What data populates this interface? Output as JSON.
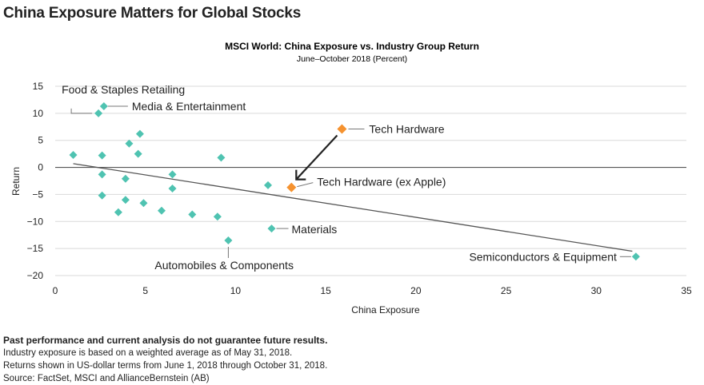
{
  "page": {
    "title": "China Exposure Matters for Global Stocks"
  },
  "footer": {
    "disclaimer": "Past performance and current analysis do not guarantee future results.",
    "line1": "Industry exposure is based on a weighted average as of May 31, 2018.",
    "line2": "Returns shown in US-dollar terms from June 1, 2018 through October 31, 2018.",
    "source": "Source: FactSet, MSCI and AllianceBernstein (AB)"
  },
  "chart_data": {
    "type": "scatter",
    "title": "MSCI World: China Exposure vs. Industry Group Return",
    "subtitle": "June–October 2018 (Percent)",
    "xlabel": "China Exposure",
    "ylabel": "Return",
    "xlim": [
      0,
      35
    ],
    "ylim": [
      -20,
      15
    ],
    "x_ticks": [
      0,
      5,
      10,
      15,
      20,
      25,
      30,
      35
    ],
    "y_ticks": [
      15,
      10,
      5,
      0,
      -5,
      -10,
      -15,
      -20
    ],
    "grid": "horizontal",
    "colors": {
      "default": "#4fc3b1",
      "highlight": "#f5922f",
      "trend": "#555555",
      "grid": "#d9d9d9"
    },
    "points": [
      {
        "x": 2.4,
        "y": 10.0,
        "label": "Food & Staples Retailing"
      },
      {
        "x": 2.7,
        "y": 11.3,
        "label": "Media & Entertainment"
      },
      {
        "x": 1.0,
        "y": 2.3
      },
      {
        "x": 2.6,
        "y": 2.2
      },
      {
        "x": 2.6,
        "y": -1.3
      },
      {
        "x": 2.6,
        "y": -5.2
      },
      {
        "x": 3.5,
        "y": -8.3
      },
      {
        "x": 3.9,
        "y": -6.0
      },
      {
        "x": 3.9,
        "y": -2.1
      },
      {
        "x": 4.1,
        "y": 4.4
      },
      {
        "x": 4.7,
        "y": 6.2
      },
      {
        "x": 4.6,
        "y": 2.5
      },
      {
        "x": 4.9,
        "y": -6.6
      },
      {
        "x": 6.5,
        "y": -1.3
      },
      {
        "x": 6.5,
        "y": -3.9
      },
      {
        "x": 5.9,
        "y": -8.0
      },
      {
        "x": 7.6,
        "y": -8.7
      },
      {
        "x": 9.0,
        "y": -9.1
      },
      {
        "x": 9.2,
        "y": 1.8
      },
      {
        "x": 9.6,
        "y": -13.5,
        "label": "Automobiles & Components"
      },
      {
        "x": 11.8,
        "y": -3.3
      },
      {
        "x": 12.0,
        "y": -11.3,
        "label": "Materials"
      },
      {
        "x": 13.1,
        "y": -3.7,
        "label": "Tech Hardware (ex Apple)",
        "highlight": true
      },
      {
        "x": 15.9,
        "y": 7.1,
        "label": "Tech Hardware",
        "highlight": true
      },
      {
        "x": 32.2,
        "y": -16.5,
        "label": "Semiconductors & Equipment"
      }
    ],
    "trendline": {
      "x": [
        1.0,
        32.0
      ],
      "y": [
        0.7,
        -15.5
      ]
    }
  }
}
